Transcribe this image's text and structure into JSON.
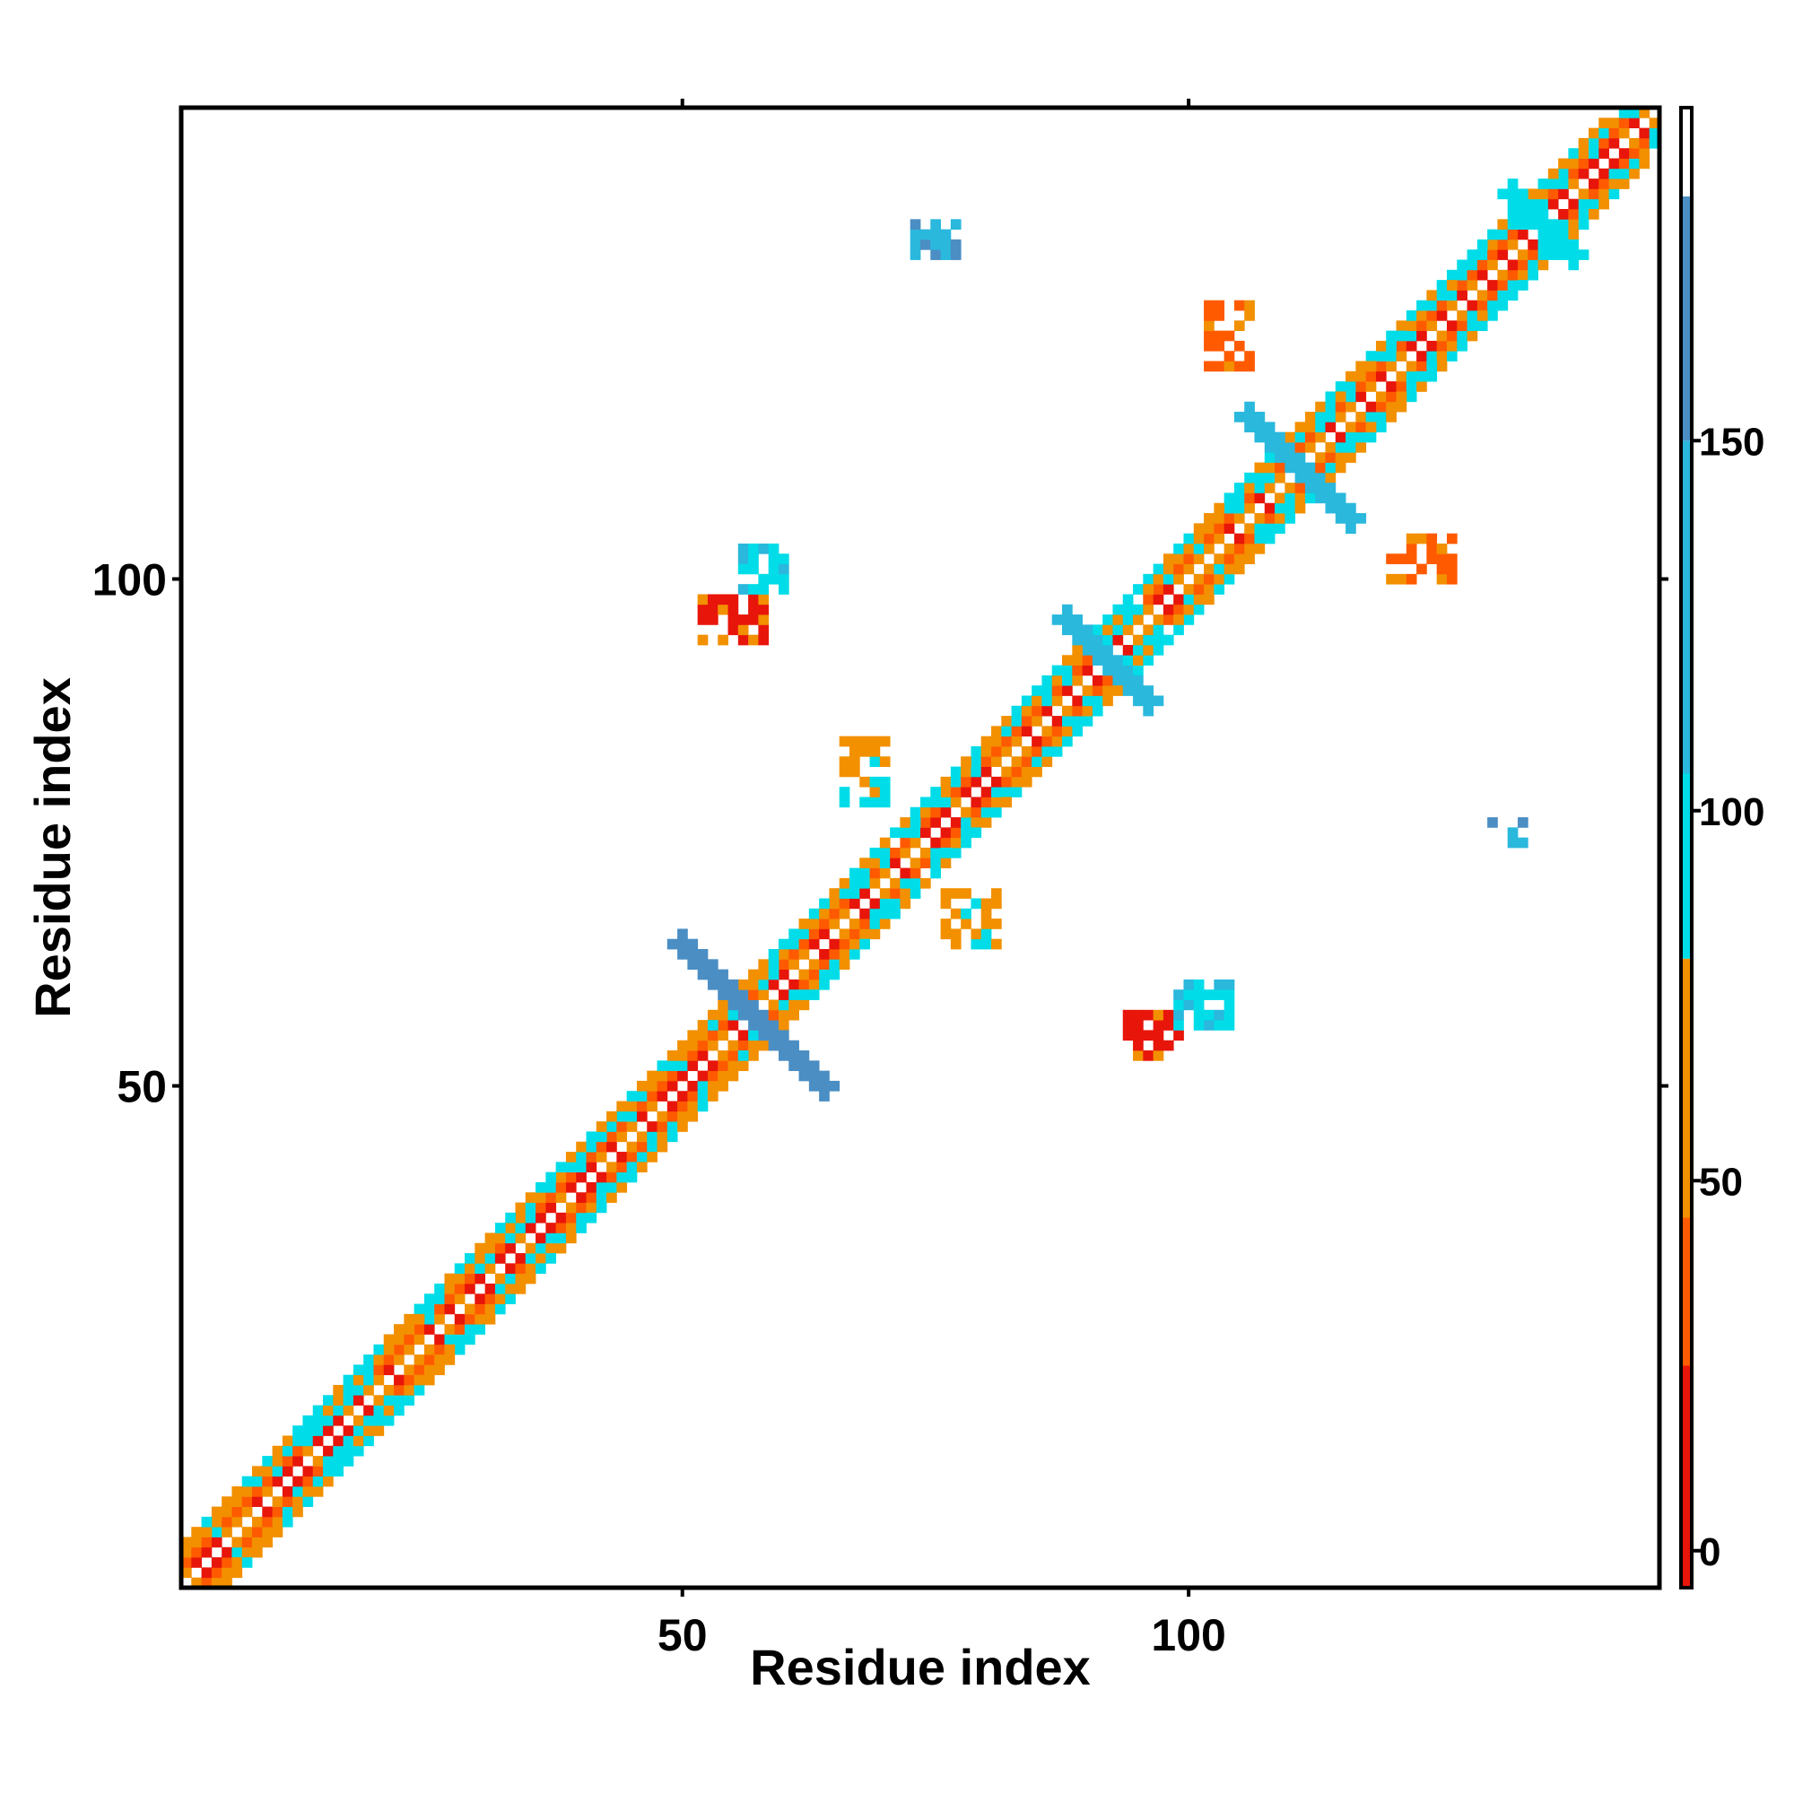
{
  "chart_data": {
    "type": "heatmap",
    "title": "",
    "xlabel": "Residue index",
    "ylabel": "Residue index",
    "xlim": [
      1,
      146
    ],
    "ylim": [
      1,
      146
    ],
    "x_ticks": [
      50,
      100
    ],
    "y_ticks": [
      50,
      100
    ],
    "grid": false,
    "colorbar": {
      "range": [
        -5,
        195
      ],
      "ticks": [
        0,
        50,
        100,
        150
      ],
      "bands": [
        {
          "from": -5,
          "to": 25,
          "color": "#e8150a"
        },
        {
          "from": 25,
          "to": 45,
          "color": "#ff5a00"
        },
        {
          "from": 45,
          "to": 80,
          "color": "#f29000"
        },
        {
          "from": 80,
          "to": 105,
          "color": "#00dde8"
        },
        {
          "from": 105,
          "to": 150,
          "color": "#2ab8dd"
        },
        {
          "from": 150,
          "to": 183,
          "color": "#4a8ec4"
        },
        {
          "from": 183,
          "to": 195,
          "color": "#ffffff"
        }
      ]
    },
    "diagonal_band": {
      "description_values": "cells along i-j in [-4,4] excluding 0",
      "alpha_helix_value": 40,
      "beta_value": 95
    },
    "segments": [
      {
        "type": "diag",
        "from": [
          1,
          1
        ],
        "to": [
          58,
          58
        ],
        "value": 45
      },
      {
        "type": "diag",
        "from": [
          60,
          60
        ],
        "to": [
          146,
          146
        ],
        "value": 45
      },
      {
        "type": "anti",
        "from": [
          50,
          64
        ],
        "to": [
          64,
          50
        ],
        "value": 160
      },
      {
        "type": "anti",
        "from": [
          88,
          96
        ],
        "to": [
          96,
          88
        ],
        "value": 140
      },
      {
        "type": "anti",
        "from": [
          106,
          116
        ],
        "to": [
          116,
          106
        ],
        "value": 120
      },
      {
        "type": "anti",
        "from": [
          132,
          138
        ],
        "to": [
          138,
          132
        ],
        "value": 100
      }
    ],
    "clusters": [
      {
        "x": [
          52,
          58
        ],
        "y": [
          94,
          98
        ],
        "value": 15
      },
      {
        "x": [
          56,
          60
        ],
        "y": [
          99,
          103
        ],
        "value": 90
      },
      {
        "x": [
          94,
          99
        ],
        "y": [
          53,
          57
        ],
        "value": 15
      },
      {
        "x": [
          99,
          104
        ],
        "y": [
          56,
          60
        ],
        "value": 90
      },
      {
        "x": [
          73,
          77
        ],
        "y": [
          132,
          135
        ],
        "value": 130
      },
      {
        "x": [
          130,
          133
        ],
        "y": [
          74,
          76
        ],
        "value": 120
      },
      {
        "x": [
          120,
          126
        ],
        "y": [
          100,
          104
        ],
        "value": 40
      },
      {
        "x": [
          102,
          106
        ],
        "y": [
          121,
          127
        ],
        "value": 40
      },
      {
        "x": [
          66,
          70
        ],
        "y": [
          78,
          84
        ],
        "value": 50
      },
      {
        "x": [
          76,
          81
        ],
        "y": [
          64,
          69
        ],
        "value": 50
      }
    ]
  }
}
